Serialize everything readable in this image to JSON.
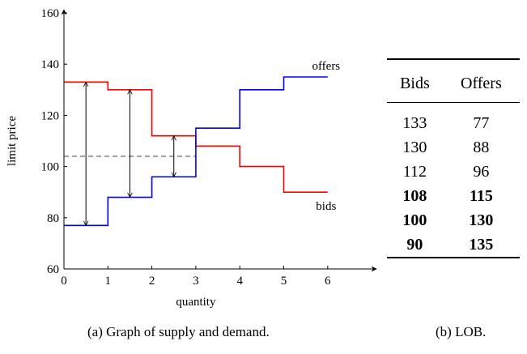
{
  "chart_data": {
    "type": "line",
    "step": true,
    "xlabel": "quantity",
    "ylabel": "limit price",
    "xlim": [
      0,
      6.9
    ],
    "ylim": [
      60,
      160
    ],
    "xticks": [
      0,
      1,
      2,
      3,
      4,
      5,
      6
    ],
    "yticks": [
      60,
      80,
      100,
      120,
      140,
      160
    ],
    "series": [
      {
        "name": "bids",
        "color": "#ff0000",
        "steps": [
          {
            "x0": 0,
            "x1": 1,
            "y": 133
          },
          {
            "x0": 1,
            "x1": 2,
            "y": 130
          },
          {
            "x0": 2,
            "x1": 3,
            "y": 112
          },
          {
            "x0": 3,
            "x1": 4,
            "y": 108
          },
          {
            "x0": 4,
            "x1": 5,
            "y": 100
          },
          {
            "x0": 5,
            "x1": 6,
            "y": 90
          }
        ]
      },
      {
        "name": "offers",
        "color": "#0000ff",
        "steps": [
          {
            "x0": 0,
            "x1": 1,
            "y": 77
          },
          {
            "x0": 1,
            "x1": 2,
            "y": 88
          },
          {
            "x0": 2,
            "x1": 3,
            "y": 96
          },
          {
            "x0": 3,
            "x1": 4,
            "y": 115
          },
          {
            "x0": 4,
            "x1": 5,
            "y": 130
          },
          {
            "x0": 5,
            "x1": 6,
            "y": 135
          }
        ]
      }
    ],
    "reference_line": {
      "y": 104,
      "x0": 0,
      "x1": 3,
      "style": "dashed"
    },
    "spread_arrows": [
      {
        "x": 0.5,
        "y0": 77,
        "y1": 133
      },
      {
        "x": 1.5,
        "y0": 88,
        "y1": 130
      },
      {
        "x": 2.5,
        "y0": 96,
        "y1": 112
      }
    ]
  },
  "captions": {
    "graph": "(a) Graph of supply and demand.",
    "table": "(b) LOB."
  },
  "lob": {
    "headers": [
      "Bids",
      "Offers"
    ],
    "rows": [
      {
        "bid": "133",
        "offer": "77",
        "bold": false
      },
      {
        "bid": "130",
        "offer": "88",
        "bold": false
      },
      {
        "bid": "112",
        "offer": "96",
        "bold": false
      },
      {
        "bid": "108",
        "offer": "115",
        "bold": true
      },
      {
        "bid": "100",
        "offer": "130",
        "bold": true
      },
      {
        "bid": "90",
        "offer": "135",
        "bold": true
      }
    ]
  }
}
